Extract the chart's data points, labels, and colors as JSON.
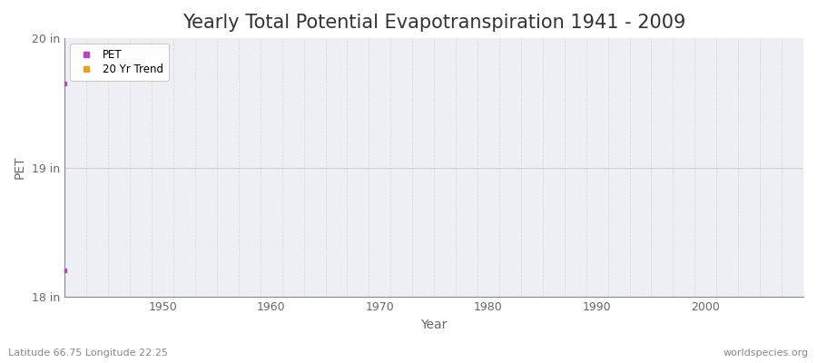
{
  "title": "Yearly Total Potential Evapotranspiration 1941 - 2009",
  "xlabel": "Year",
  "ylabel": "PET",
  "ylim": [
    18,
    20
  ],
  "xlim": [
    1941,
    2009
  ],
  "yticks": [
    18,
    19,
    20
  ],
  "ytick_labels": [
    "18 in",
    "19 in",
    "20 in"
  ],
  "xticks": [
    1950,
    1960,
    1970,
    1980,
    1990,
    2000
  ],
  "pet_points": [
    [
      1941,
      19.65
    ],
    [
      1941,
      18.2
    ]
  ],
  "pet_color": "#bb44bb",
  "trend_color": "#e8a020",
  "bg_color": "#eeeef5",
  "vgrid_color": "#cccccc",
  "hgrid_color": "#cccccc",
  "spine_color": "#888888",
  "tick_color": "#666666",
  "title_color": "#333333",
  "text_bottom_left": "Latitude 66.75 Longitude 22.25",
  "text_bottom_right": "worldspecies.org",
  "legend_labels": [
    "PET",
    "20 Yr Trend"
  ],
  "title_fontsize": 15,
  "label_fontsize": 10,
  "tick_fontsize": 9,
  "annotation_fontsize": 8
}
